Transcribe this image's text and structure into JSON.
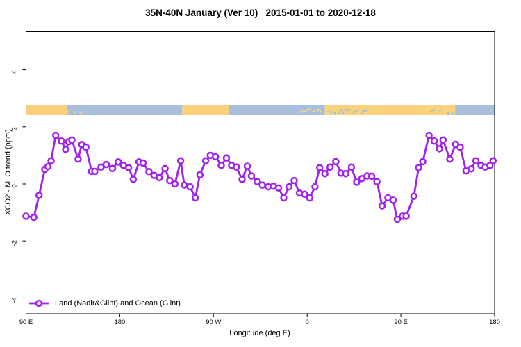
{
  "chart_data": {
    "type": "line",
    "title": "35N-40N January (Ver 10)   2015-01-01 to 2020-12-18",
    "xlabel": "Longitude (deg E)",
    "ylabel": "XCO2 - MLO trend (ppm)",
    "xlim": [
      90,
      540
    ],
    "ylim": [
      -4.55,
      5.34
    ],
    "grid": false,
    "legend_position": "bottom-left-inside",
    "x_ticks": [
      {
        "value": 90,
        "label": "90 E"
      },
      {
        "value": 180,
        "label": "180"
      },
      {
        "value": 270,
        "label": "90 W"
      },
      {
        "value": 360,
        "label": "0"
      },
      {
        "value": 450,
        "label": "90 E"
      },
      {
        "value": 540,
        "label": "180"
      }
    ],
    "y_ticks": [
      {
        "value": 4,
        "label": "4"
      },
      {
        "value": 2,
        "label": "2"
      },
      {
        "value": 0,
        "label": "0"
      },
      {
        "value": -2,
        "label": "-2"
      },
      {
        "value": -4,
        "label": "-4"
      }
    ],
    "series": [
      {
        "name": "Land (Nadir&Glint) and Ocean (Glint)",
        "color": "#A020F0",
        "marker": "open-circle",
        "x": [
          90,
          97.5,
          102.5,
          108,
          111,
          114,
          118.5,
          124,
          128,
          131,
          134,
          140,
          143.5,
          147.5,
          153,
          156,
          162,
          167,
          173,
          178.5,
          183.5,
          188.5,
          193,
          198.5,
          202.5,
          208,
          213,
          218,
          223.5,
          228,
          233,
          238.5,
          242,
          247.5,
          252.5,
          257,
          262.5,
          267,
          272,
          277.5,
          282.5,
          287.5,
          292,
          297.5,
          302.5,
          306.5,
          312,
          317,
          322.5,
          327.5,
          332.5,
          337.5,
          342.5,
          347.5,
          352.5,
          357.5,
          362.5,
          367.5,
          372,
          377,
          382,
          387.5,
          392.5,
          397,
          402.5,
          407.5,
          412.5,
          417.5,
          422,
          427,
          432,
          437.5,
          442.5,
          446.5,
          451.5,
          455,
          462.5,
          467,
          471,
          477,
          482,
          487,
          490.5,
          497,
          502.5,
          507,
          512.5,
          517.5,
          522,
          527,
          531,
          535.5,
          538.5
        ],
        "y": [
          -1.13,
          -1.17,
          -0.4,
          0.51,
          0.61,
          0.81,
          1.7,
          1.5,
          1.21,
          1.48,
          1.54,
          0.87,
          1.38,
          1.29,
          0.44,
          0.44,
          0.59,
          0.68,
          0.54,
          0.77,
          0.65,
          0.57,
          0.16,
          0.77,
          0.73,
          0.43,
          0.3,
          0.22,
          0.54,
          0.12,
          0.0,
          0.81,
          -0.04,
          -0.1,
          -0.49,
          0.32,
          0.81,
          1.0,
          0.95,
          0.65,
          0.91,
          0.65,
          0.59,
          0.16,
          0.62,
          0.28,
          0.08,
          -0.04,
          -0.1,
          -0.08,
          -0.14,
          -0.49,
          -0.1,
          0.12,
          -0.32,
          -0.36,
          -0.49,
          -0.1,
          0.57,
          0.36,
          0.59,
          0.78,
          0.38,
          0.36,
          0.59,
          0.06,
          0.19,
          0.28,
          0.27,
          0.08,
          -0.77,
          -0.49,
          -0.57,
          -1.24,
          -1.13,
          -1.13,
          -0.43,
          0.57,
          0.78,
          1.7,
          1.5,
          1.23,
          1.54,
          0.87,
          1.39,
          1.29,
          0.46,
          0.53,
          0.81,
          0.65,
          0.59,
          0.65,
          0.81
        ]
      }
    ],
    "map_band": {
      "description": "land-ocean strip for 35N-40N latitude belt",
      "value_top": 2.77,
      "value_bottom": 2.41,
      "land_color": "#FAD17D",
      "ocean_color": "#A8C0DE",
      "segments": [
        {
          "from": 90,
          "to": 129,
          "type": "land"
        },
        {
          "from": 129,
          "to": 144,
          "type": "mixed-ocean"
        },
        {
          "from": 144,
          "to": 240,
          "type": "ocean"
        },
        {
          "from": 240,
          "to": 285,
          "type": "land"
        },
        {
          "from": 285,
          "to": 353,
          "type": "ocean"
        },
        {
          "from": 353,
          "to": 377,
          "type": "mixed-ocean"
        },
        {
          "from": 377,
          "to": 419,
          "type": "mixed-land"
        },
        {
          "from": 419,
          "to": 478,
          "type": "land"
        },
        {
          "from": 478,
          "to": 502,
          "type": "mixed-land"
        },
        {
          "from": 502,
          "to": 540,
          "type": "ocean"
        }
      ]
    }
  },
  "legend": {
    "label": "Land (Nadir&Glint) and Ocean (Glint)"
  }
}
